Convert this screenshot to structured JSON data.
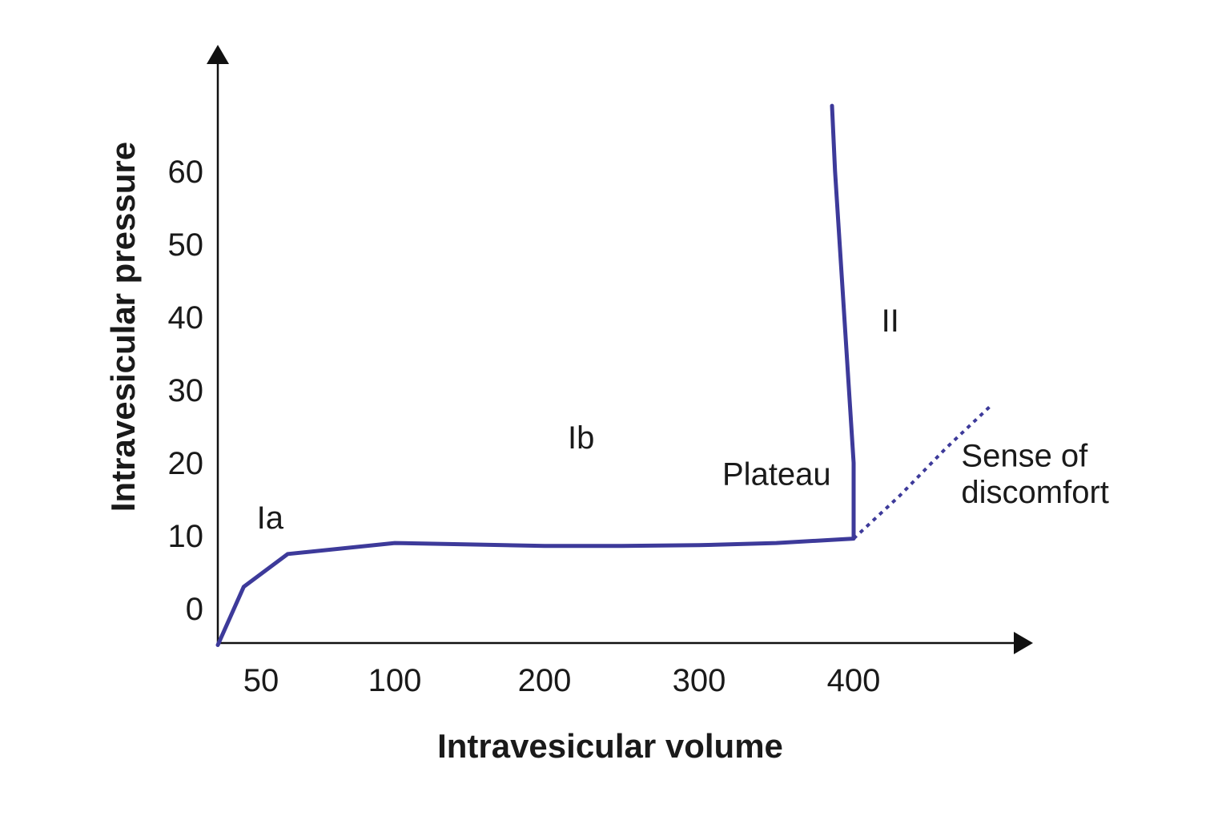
{
  "chart_data": {
    "type": "line",
    "title": "",
    "xlabel": "Intravesicular volume",
    "ylabel": "Intravesicular pressure",
    "x_ticks": [
      "50",
      "100",
      "200",
      "300",
      "400"
    ],
    "y_ticks": [
      "0",
      "10",
      "20",
      "30",
      "40",
      "50",
      "60"
    ],
    "grid": false,
    "legend": "none",
    "series": [
      {
        "style": "solid",
        "color": "#3d3a9a",
        "x": [
          0,
          30,
          60,
          100,
          150,
          200,
          250,
          300,
          350,
          400,
          400,
          397,
          394,
          391,
          388,
          386
        ],
        "y": [
          -5,
          3,
          7.5,
          9,
          8.8,
          8.6,
          8.6,
          8.7,
          9,
          9.6,
          20,
          30,
          40,
          50,
          60,
          69
        ]
      },
      {
        "style": "dotted",
        "color": "#3d3a9a",
        "x": [
          400,
          430,
          460,
          490
        ],
        "y": [
          9.6,
          15.5,
          22,
          28
        ]
      }
    ],
    "annotations": [
      {
        "text": "Ia",
        "x": 45,
        "y": 11
      },
      {
        "text": "Ib",
        "x": 215,
        "y": 22
      },
      {
        "text": "Plateau",
        "x": 315,
        "y": 17
      },
      {
        "text": "II",
        "x": 418,
        "y": 38
      },
      {
        "text": "Sense of",
        "x": 470,
        "y": 19.5
      },
      {
        "text": "discomfort",
        "x": 470,
        "y": 14.5
      }
    ],
    "colors": {
      "axis": "#111111",
      "curve": "#3d3a9a"
    }
  }
}
